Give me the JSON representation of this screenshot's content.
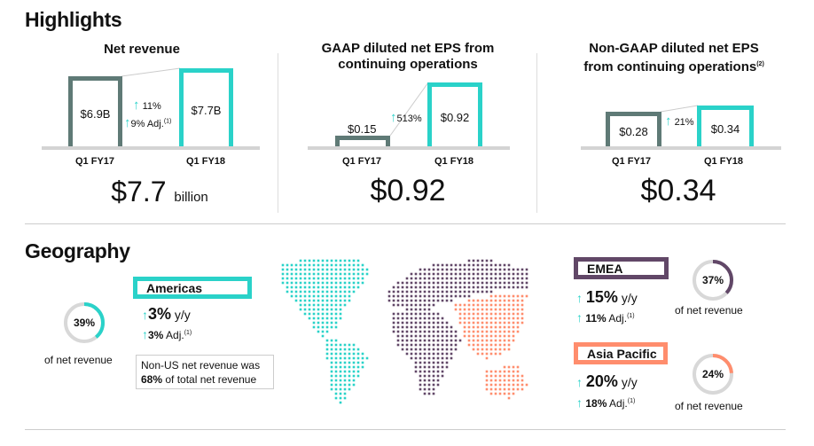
{
  "highlights": {
    "title": "Highlights",
    "net_revenue": {
      "title": "Net revenue",
      "prev_value": "$6.9B",
      "curr_value": "$7.7B",
      "prev_label": "Q1 FY17",
      "curr_label": "Q1 FY18",
      "growth": "11%",
      "growth_adj": "9% Adj.",
      "footnote": "(1)",
      "headline": "$7.7",
      "headline_unit": "billion"
    },
    "gaap_eps": {
      "title_line1": "GAAP diluted net EPS from",
      "title_line2": "continuing operations",
      "prev_value": "$0.15",
      "curr_value": "$0.92",
      "prev_label": "Q1 FY17",
      "curr_label": "Q1 FY18",
      "growth": "513%",
      "headline": "$0.92"
    },
    "nongaap_eps": {
      "title_line1": "Non-GAAP diluted net EPS",
      "title_line2": "from continuing operations",
      "footnote": "(2)",
      "prev_value": "$0.28",
      "curr_value": "$0.34",
      "prev_label": "Q1 FY17",
      "curr_label": "Q1 FY18",
      "growth": "21%",
      "headline": "$0.34"
    }
  },
  "geography": {
    "title": "Geography",
    "americas": {
      "name": "Americas",
      "share": 39,
      "share_label": "39%",
      "share_text": "of net revenue",
      "yy": "3%",
      "yy_unit": "y/y",
      "adj": "3%",
      "adj_unit": "Adj.",
      "footnote": "(1)",
      "color": "#2ad2c9"
    },
    "note": {
      "line1": "Non-US net revenue was",
      "pct": "68%",
      "line2": "of total net revenue"
    },
    "emea": {
      "name": "EMEA",
      "share": 37,
      "share_label": "37%",
      "share_text": "of net revenue",
      "yy": "15%",
      "yy_unit": "y/y",
      "adj": "11%",
      "adj_unit": "Adj.",
      "footnote": "(1)",
      "color": "#614767"
    },
    "apac": {
      "name": "Asia Pacific",
      "share": 24,
      "share_label": "24%",
      "share_text": "of net revenue",
      "yy": "20%",
      "yy_unit": "y/y",
      "adj": "18%",
      "adj_unit": "Adj.",
      "footnote": "(1)",
      "color": "#ff8d6d"
    }
  },
  "colors": {
    "teal": "#2ad2c9",
    "prev": "#5f7a76",
    "gray": "#d4d4d4"
  }
}
